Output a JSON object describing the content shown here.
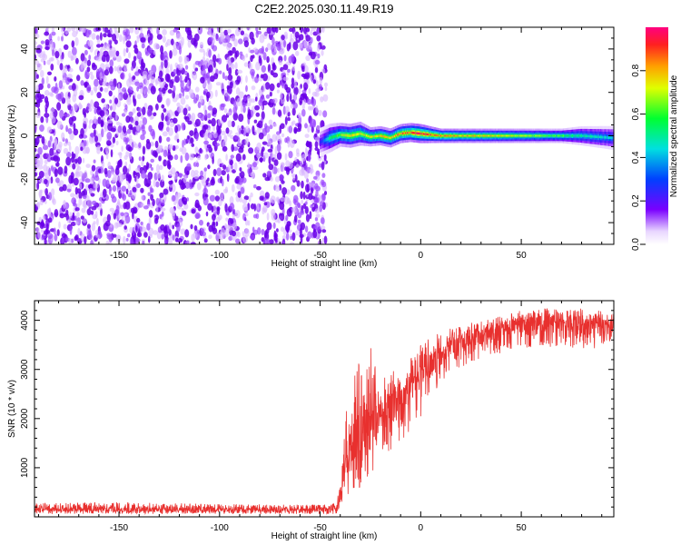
{
  "title": "C2E2.2025.030.11.49.R19",
  "chart_data": [
    {
      "type": "heatmap",
      "xlabel": "Height of straight line (km)",
      "ylabel": "Frequency (Hz)",
      "xlim": [
        -192,
        96
      ],
      "ylim": [
        -50,
        50
      ],
      "xticks": [
        -150,
        -100,
        -50,
        0,
        50
      ],
      "yticks": [
        -40,
        -20,
        0,
        20,
        40
      ],
      "noise_region_x": [
        -192,
        -47
      ],
      "signal_band": {
        "x": [
          -50,
          -45,
          -40,
          -35,
          -30,
          -25,
          -20,
          -15,
          -10,
          -5,
          0,
          10,
          20,
          30,
          40,
          50,
          60,
          70,
          80,
          96
        ],
        "center_hz": [
          -3,
          -1,
          0.5,
          0,
          1,
          -0.5,
          0,
          -1,
          1,
          1.5,
          1,
          0,
          0,
          0,
          0,
          0,
          0,
          0,
          0,
          -1
        ],
        "half_width_hz": [
          3,
          3,
          2.5,
          2.5,
          2.5,
          2,
          2,
          2,
          2,
          2,
          2,
          1.5,
          1.5,
          1.5,
          1.5,
          1.5,
          1.5,
          1.5,
          2,
          2.5
        ],
        "peak_amplitude": [
          0.25,
          0.55,
          0.7,
          0.8,
          0.8,
          0.75,
          0.85,
          0.8,
          0.9,
          0.95,
          1.0,
          0.9,
          0.85,
          0.85,
          0.8,
          0.75,
          0.7,
          0.65,
          0.55,
          0.45
        ]
      },
      "colorbar": {
        "label": "Normalized spectral amplitude",
        "range": [
          0,
          1
        ],
        "ticks": [
          0.0,
          0.2,
          0.4,
          0.6,
          0.8
        ]
      }
    },
    {
      "type": "line",
      "xlabel": "Height of straight line (km)",
      "ylabel": "SNR (10 * v/v)",
      "xlim": [
        -192,
        96
      ],
      "ylim": [
        0,
        4400
      ],
      "xticks": [
        -150,
        -100,
        -50,
        0,
        50
      ],
      "yticks": [
        1000,
        2000,
        3000,
        4000
      ],
      "color": "#e8302e",
      "series": [
        {
          "x": [
            -192,
            -150,
            -100,
            -50,
            -42,
            -40,
            -38,
            -36,
            -34,
            -32,
            -30,
            -28,
            -26,
            -24,
            -22,
            -20,
            -18,
            -16,
            -14,
            -12,
            -10,
            -8,
            -6,
            -4,
            -2,
            0,
            5,
            10,
            15,
            20,
            25,
            30,
            35,
            40,
            45,
            50,
            55,
            60,
            65,
            70,
            75,
            80,
            85,
            90,
            96
          ],
          "upper": [
            280,
            300,
            260,
            250,
            270,
            700,
            1800,
            2500,
            2300,
            3400,
            3000,
            2600,
            3300,
            3600,
            2800,
            2500,
            3100,
            2700,
            3000,
            2900,
            2800,
            3000,
            3200,
            3300,
            3400,
            3500,
            3700,
            3800,
            3850,
            3900,
            3950,
            4000,
            4050,
            4100,
            4150,
            4200,
            4200,
            4250,
            4250,
            4250,
            4250,
            4250,
            4200,
            4200,
            4150
          ],
          "mean": [
            150,
            150,
            150,
            150,
            160,
            400,
            900,
            1300,
            1400,
            1500,
            1600,
            1700,
            1800,
            1900,
            2000,
            2050,
            2100,
            2200,
            2300,
            2400,
            2450,
            2500,
            2600,
            2700,
            2750,
            2800,
            3100,
            3300,
            3450,
            3550,
            3650,
            3700,
            3750,
            3800,
            3850,
            3900,
            3900,
            3950,
            3950,
            3950,
            3950,
            3950,
            3950,
            3950,
            3900
          ],
          "lower": [
            60,
            60,
            60,
            60,
            60,
            100,
            200,
            300,
            400,
            500,
            600,
            700,
            800,
            900,
            1000,
            1100,
            1200,
            1300,
            1400,
            1500,
            1500,
            1600,
            1700,
            1800,
            1900,
            2000,
            2400,
            2700,
            2900,
            3000,
            3100,
            3200,
            3300,
            3300,
            3400,
            3400,
            3400,
            3450,
            3450,
            3500,
            3400,
            3400,
            3400,
            3500,
            3500
          ]
        }
      ]
    }
  ]
}
